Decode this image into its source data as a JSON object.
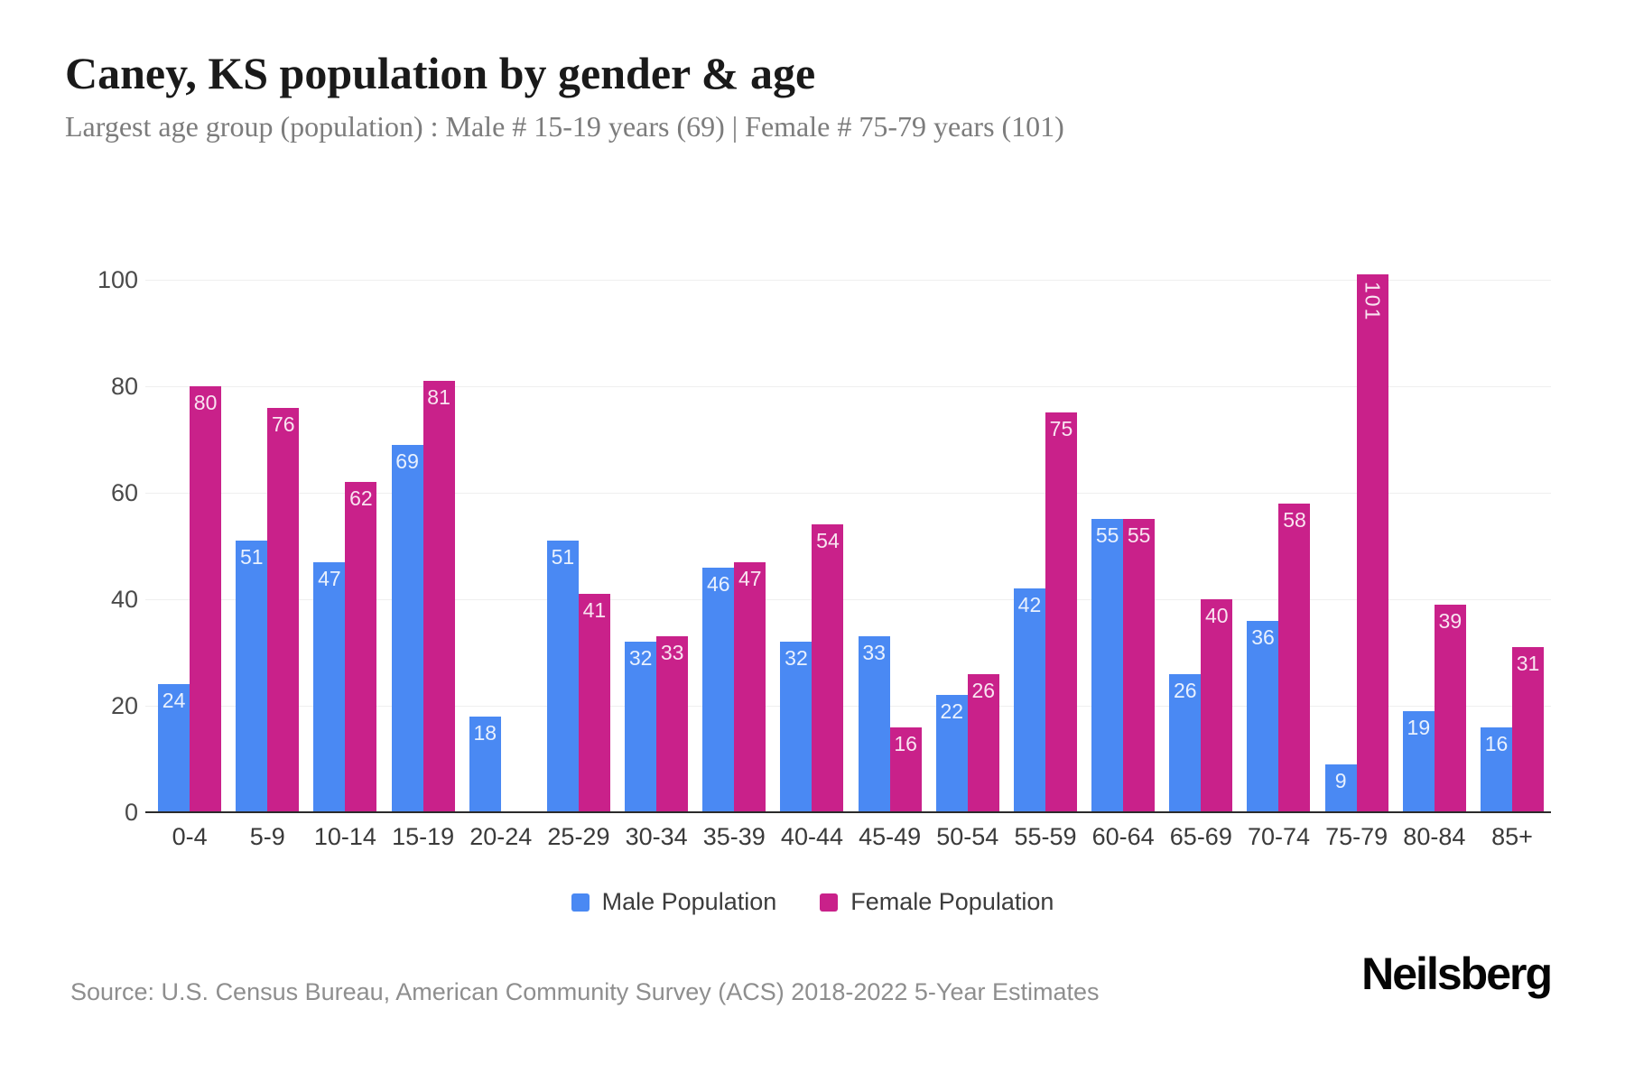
{
  "header": {
    "title": "Caney, KS population by gender & age",
    "subtitle": "Largest age group (population) : Male # 15-19 years (69) | Female # 75-79 years (101)"
  },
  "chart_data": {
    "type": "bar",
    "title": "Caney, KS population by gender & age",
    "categories": [
      "0-4",
      "5-9",
      "10-14",
      "15-19",
      "20-24",
      "25-29",
      "30-34",
      "35-39",
      "40-44",
      "45-49",
      "50-54",
      "55-59",
      "60-64",
      "65-69",
      "70-74",
      "75-79",
      "80-84",
      "85+"
    ],
    "series": [
      {
        "name": "Male Population",
        "color": "#4a89f3",
        "values": [
          24,
          51,
          47,
          69,
          18,
          51,
          32,
          46,
          32,
          33,
          22,
          42,
          55,
          26,
          36,
          9,
          19,
          16
        ]
      },
      {
        "name": "Female Population",
        "color": "#c9218a",
        "values": [
          80,
          76,
          62,
          81,
          0,
          41,
          33,
          47,
          54,
          16,
          26,
          75,
          55,
          40,
          58,
          101,
          39,
          31
        ]
      }
    ],
    "xlabel": "",
    "ylabel": "",
    "ylim": [
      0,
      100
    ],
    "yticks": [
      0,
      20,
      40,
      60,
      80,
      100
    ],
    "grid": "horizontal",
    "legend_position": "bottom",
    "value_label_position": "inside-top"
  },
  "footer": {
    "source": "Source: U.S. Census Bureau, American Community Survey (ACS) 2018-2022 5-Year Estimates",
    "brand": "Neilsberg"
  },
  "colors": {
    "gridline": "#efefef",
    "baseline": "#2b2b2b",
    "value_label": "rgba(255,255,255,0.88)"
  }
}
